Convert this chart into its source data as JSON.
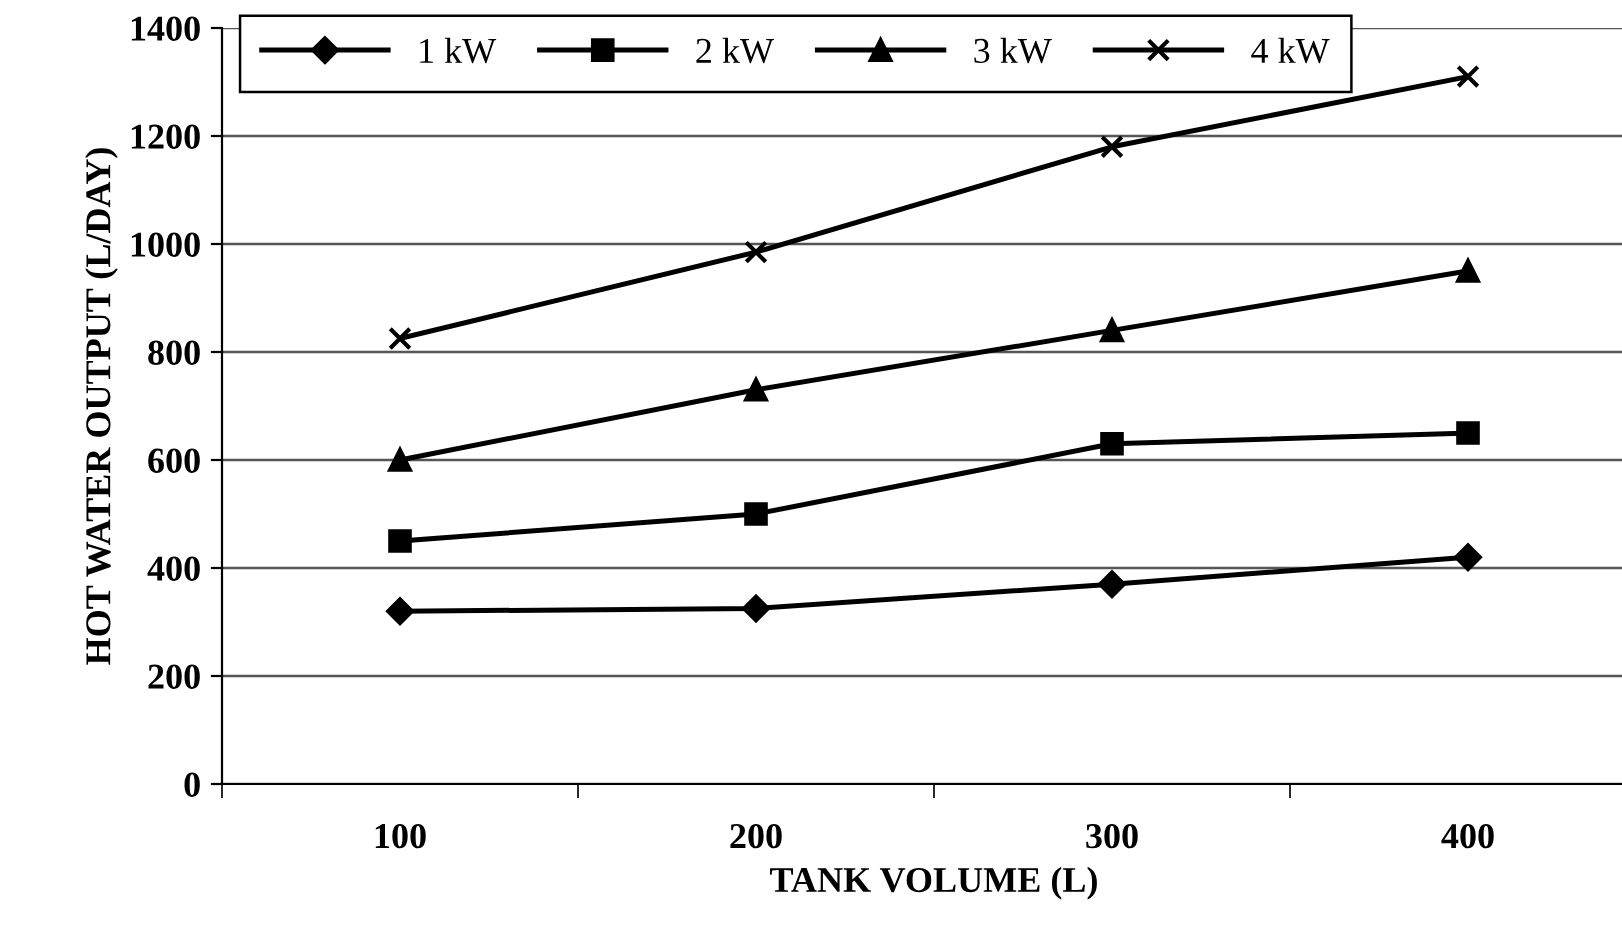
{
  "chart_data": {
    "type": "line",
    "xlabel": "TANK VOLUME (L)",
    "ylabel": "HOT WATER OUTPUT (L/DAY)",
    "categories": [
      "100",
      "200",
      "300",
      "400"
    ],
    "series": [
      {
        "name": "1 kW",
        "color": "#000000",
        "marker": "diamond",
        "values": [
          320,
          325,
          370,
          420
        ]
      },
      {
        "name": "2 kW",
        "color": "#000000",
        "marker": "square",
        "values": [
          450,
          500,
          630,
          650
        ]
      },
      {
        "name": "3 kW",
        "color": "#000000",
        "marker": "triangle",
        "values": [
          600,
          730,
          840,
          950
        ]
      },
      {
        "name": "4 kW",
        "color": "#000000",
        "marker": "cross",
        "values": [
          825,
          985,
          1180,
          1310
        ]
      }
    ],
    "ylim": [
      0,
      1400
    ],
    "yticks": [
      0,
      200,
      400,
      600,
      800,
      1000,
      1200,
      1400
    ],
    "grid": "y",
    "legend": "top left",
    "line_style": "solid"
  }
}
